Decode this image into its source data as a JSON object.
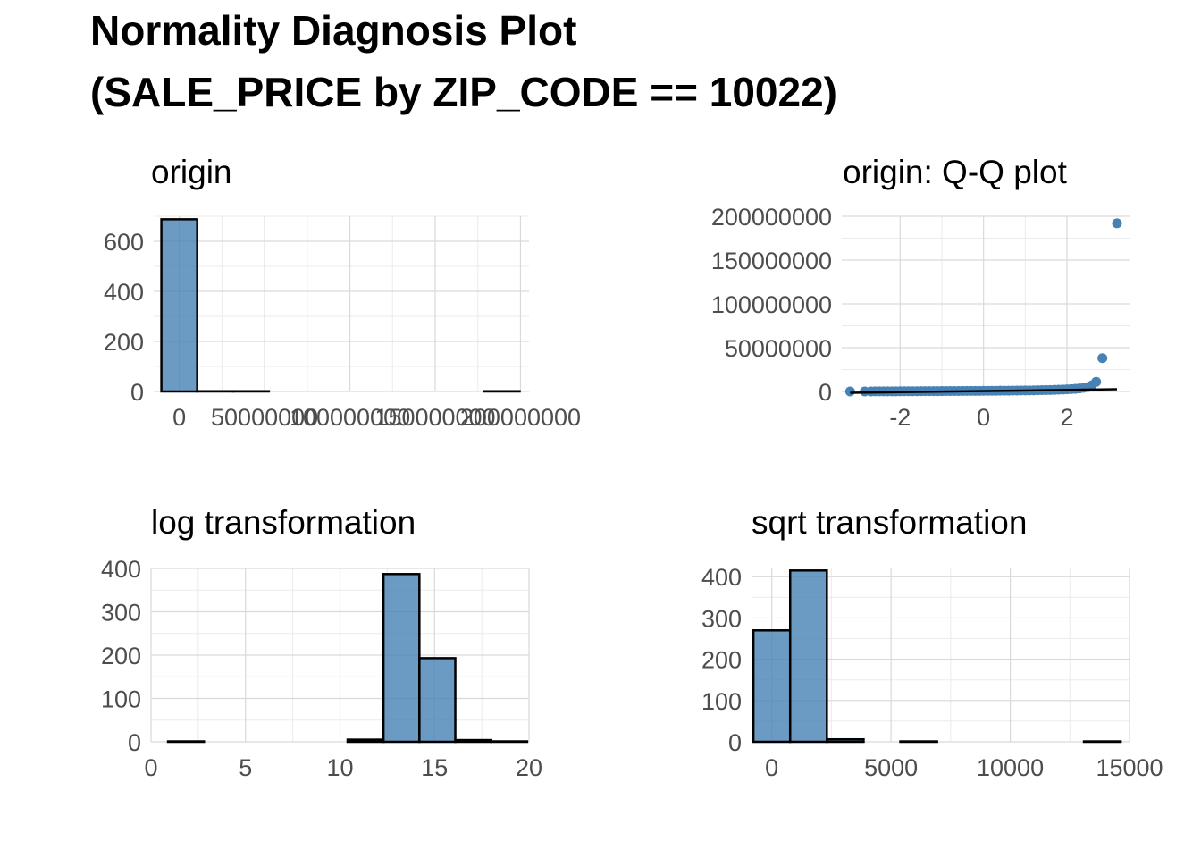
{
  "page": {
    "title_line1": "Normality Diagnosis Plot",
    "title_line2": "(SALE_PRICE by ZIP_CODE == 10022)"
  },
  "colors": {
    "fill": "#4682b4",
    "outline": "#000000",
    "grid": "#d9d9d9",
    "tick": "#4d4d4d"
  },
  "chart_data": [
    {
      "id": "origin",
      "type": "bar",
      "title": "origin",
      "xlim": [
        -15000000,
        205000000
      ],
      "ylim": [
        0,
        700
      ],
      "xticks": [
        0,
        50000000,
        100000000,
        150000000,
        200000000
      ],
      "xtick_labels": [
        "0",
        "50000000",
        "100000000",
        "150000000",
        "200000000"
      ],
      "yticks": [
        0,
        200,
        400,
        600
      ],
      "ytick_labels": [
        "0",
        "200",
        "400",
        "600"
      ],
      "bins": [
        {
          "x0": -10500000,
          "x1": 10500000,
          "count": 688
        },
        {
          "x0": 10500000,
          "x1": 31500000,
          "count": 1
        },
        {
          "x0": 31500000,
          "x1": 52500000,
          "count": 1
        },
        {
          "x0": 52500000,
          "x1": 73500000,
          "count": 0
        },
        {
          "x0": 73500000,
          "x1": 94500000,
          "count": 0
        },
        {
          "x0": 94500000,
          "x1": 115500000,
          "count": 0
        },
        {
          "x0": 115500000,
          "x1": 136500000,
          "count": 0
        },
        {
          "x0": 136500000,
          "x1": 157500000,
          "count": 0
        },
        {
          "x0": 157500000,
          "x1": 178500000,
          "count": 0
        },
        {
          "x0": 178500000,
          "x1": 199500000,
          "count": 1
        }
      ]
    },
    {
      "id": "qq",
      "type": "scatter",
      "title": "origin: Q-Q plot",
      "xlim": [
        -3.4,
        3.5
      ],
      "ylim": [
        0,
        200000000
      ],
      "xticks": [
        -2,
        0,
        2
      ],
      "xtick_labels": [
        "-2",
        "0",
        "2"
      ],
      "yticks": [
        0,
        50000000,
        100000000,
        150000000,
        200000000
      ],
      "ytick_labels": [
        "0",
        "50000000",
        "100000000",
        "150000000",
        "200000000"
      ],
      "line": {
        "x": [
          -3.2,
          3.2
        ],
        "y": [
          -1500000,
          2500000
        ]
      },
      "points": {
        "x": [
          -3.2,
          -2.85,
          -2.7,
          -2.6,
          -2.5,
          -2.4,
          -2.3,
          -2.2,
          -2.1,
          -2.0,
          -1.9,
          -1.8,
          -1.7,
          -1.6,
          -1.5,
          -1.4,
          -1.3,
          -1.2,
          -1.1,
          -1.0,
          -0.9,
          -0.8,
          -0.7,
          -0.6,
          -0.5,
          -0.4,
          -0.3,
          -0.2,
          -0.1,
          0.0,
          0.1,
          0.2,
          0.3,
          0.4,
          0.5,
          0.6,
          0.7,
          0.8,
          0.9,
          1.0,
          1.1,
          1.2,
          1.3,
          1.4,
          1.5,
          1.6,
          1.7,
          1.8,
          1.9,
          2.0,
          2.1,
          2.2,
          2.3,
          2.4,
          2.5,
          2.6,
          2.7,
          2.85,
          3.2
        ],
        "y": [
          0,
          20000,
          50000,
          80000,
          100000,
          120000,
          140000,
          160000,
          180000,
          200000,
          220000,
          250000,
          280000,
          300000,
          320000,
          350000,
          380000,
          400000,
          420000,
          450000,
          480000,
          500000,
          520000,
          550000,
          580000,
          600000,
          630000,
          660000,
          690000,
          720000,
          750000,
          780000,
          810000,
          850000,
          900000,
          950000,
          1000000,
          1050000,
          1100000,
          1150000,
          1200000,
          1300000,
          1400000,
          1500000,
          1600000,
          1700000,
          1850000,
          2000000,
          2200000,
          2400000,
          2700000,
          3000000,
          3500000,
          4200000,
          5000000,
          7000000,
          11000000,
          38000000,
          192000000
        ]
      }
    },
    {
      "id": "log",
      "type": "bar",
      "title": "log transformation",
      "xlim": [
        0,
        20
      ],
      "ylim": [
        0,
        400
      ],
      "xticks": [
        0,
        5,
        10,
        15,
        20
      ],
      "xtick_labels": [
        "0",
        "5",
        "10",
        "15",
        "20"
      ],
      "yticks": [
        0,
        100,
        200,
        300,
        400
      ],
      "ytick_labels": [
        "0",
        "100",
        "200",
        "300",
        "400"
      ],
      "bins": [
        {
          "x0": 0.9,
          "x1": 2.8,
          "count": 1
        },
        {
          "x0": 2.8,
          "x1": 4.7,
          "count": 0
        },
        {
          "x0": 4.7,
          "x1": 6.6,
          "count": 0
        },
        {
          "x0": 6.6,
          "x1": 8.5,
          "count": 0
        },
        {
          "x0": 8.5,
          "x1": 10.4,
          "count": 0
        },
        {
          "x0": 10.4,
          "x1": 12.3,
          "count": 5
        },
        {
          "x0": 12.3,
          "x1": 14.2,
          "count": 387
        },
        {
          "x0": 14.2,
          "x1": 16.1,
          "count": 193
        },
        {
          "x0": 16.1,
          "x1": 18.0,
          "count": 4
        },
        {
          "x0": 18.0,
          "x1": 19.9,
          "count": 1
        }
      ]
    },
    {
      "id": "sqrt",
      "type": "bar",
      "title": "sqrt transformation",
      "xlim": [
        -850,
        15000
      ],
      "ylim": [
        0,
        420
      ],
      "xticks": [
        0,
        5000,
        10000,
        15000
      ],
      "xtick_labels": [
        "0",
        "5000",
        "10000",
        "15000"
      ],
      "yticks": [
        0,
        100,
        200,
        300,
        400
      ],
      "ytick_labels": [
        "0",
        "100",
        "200",
        "300",
        "400"
      ],
      "bins": [
        {
          "x0": -770,
          "x1": 770,
          "count": 270
        },
        {
          "x0": 770,
          "x1": 2310,
          "count": 415
        },
        {
          "x0": 2310,
          "x1": 3850,
          "count": 6
        },
        {
          "x0": 3850,
          "x1": 5390,
          "count": 0
        },
        {
          "x0": 5390,
          "x1": 6930,
          "count": 1
        },
        {
          "x0": 6930,
          "x1": 8470,
          "count": 0
        },
        {
          "x0": 8470,
          "x1": 10010,
          "count": 0
        },
        {
          "x0": 10010,
          "x1": 11550,
          "count": 0
        },
        {
          "x0": 11550,
          "x1": 13090,
          "count": 0
        },
        {
          "x0": 13090,
          "x1": 14630,
          "count": 1
        }
      ]
    }
  ]
}
